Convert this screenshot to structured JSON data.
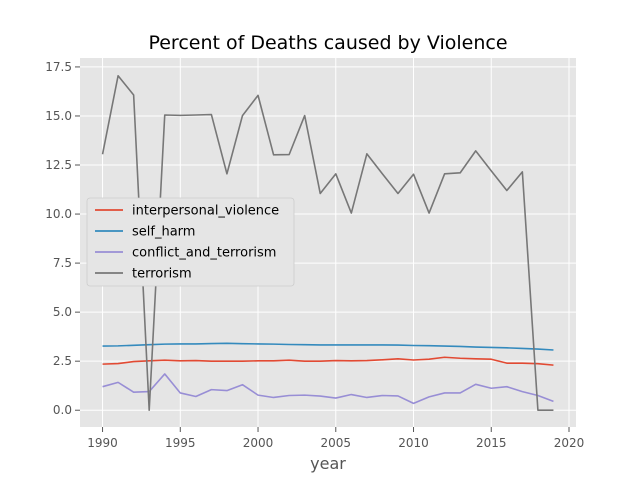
{
  "chart_data": {
    "type": "line",
    "title": "Percent of Deaths caused by Violence",
    "xlabel": "year",
    "ylabel": "",
    "xlim": [
      1988.55,
      2020.45
    ],
    "ylim": [
      -0.855,
      17.955
    ],
    "x_ticks": [
      1990,
      1995,
      2000,
      2005,
      2010,
      2015,
      2020
    ],
    "y_ticks": [
      0.0,
      2.5,
      5.0,
      7.5,
      10.0,
      12.5,
      15.0,
      17.5
    ],
    "x_tick_labels": [
      "1990",
      "1995",
      "2000",
      "2005",
      "2010",
      "2015",
      "2020"
    ],
    "y_tick_labels": [
      "0.0",
      "2.5",
      "5.0",
      "7.5",
      "10.0",
      "12.5",
      "15.0",
      "17.5"
    ],
    "grid": true,
    "legend_position": "center-left",
    "x": [
      1990,
      1991,
      1992,
      1993,
      1994,
      1995,
      1996,
      1997,
      1998,
      1999,
      2000,
      2001,
      2002,
      2003,
      2004,
      2005,
      2006,
      2007,
      2008,
      2009,
      2010,
      2011,
      2012,
      2013,
      2014,
      2015,
      2016,
      2017,
      2018,
      2019
    ],
    "series": [
      {
        "name": "interpersonal_violence",
        "color": "#e24a33",
        "values": [
          2.35,
          2.38,
          2.48,
          2.52,
          2.55,
          2.52,
          2.53,
          2.5,
          2.5,
          2.5,
          2.52,
          2.52,
          2.55,
          2.5,
          2.5,
          2.53,
          2.52,
          2.53,
          2.57,
          2.62,
          2.56,
          2.6,
          2.7,
          2.65,
          2.62,
          2.6,
          2.4,
          2.4,
          2.37,
          2.3
        ]
      },
      {
        "name": "self_harm",
        "color": "#348abd",
        "values": [
          3.27,
          3.28,
          3.31,
          3.34,
          3.37,
          3.38,
          3.38,
          3.4,
          3.41,
          3.39,
          3.38,
          3.37,
          3.35,
          3.34,
          3.33,
          3.33,
          3.33,
          3.33,
          3.33,
          3.32,
          3.3,
          3.29,
          3.27,
          3.25,
          3.22,
          3.2,
          3.18,
          3.15,
          3.12,
          3.07
        ]
      },
      {
        "name": "conflict_and_terrorism",
        "color": "#988ed5",
        "values": [
          1.2,
          1.42,
          0.92,
          0.95,
          1.85,
          0.88,
          0.7,
          1.05,
          1.0,
          1.3,
          0.77,
          0.65,
          0.75,
          0.77,
          0.72,
          0.62,
          0.8,
          0.65,
          0.75,
          0.73,
          0.35,
          0.68,
          0.88,
          0.88,
          1.32,
          1.12,
          1.2,
          0.95,
          0.75,
          0.45
        ]
      },
      {
        "name": "terrorism",
        "color": "#777777",
        "values": [
          13.05,
          17.05,
          16.07,
          0.0,
          15.05,
          15.03,
          15.05,
          15.07,
          12.05,
          15.02,
          16.05,
          13.02,
          13.03,
          15.02,
          11.05,
          12.05,
          10.05,
          13.07,
          12.05,
          11.05,
          12.03,
          10.05,
          12.05,
          12.1,
          13.22,
          12.2,
          11.2,
          12.15,
          0.0,
          0.0
        ]
      }
    ]
  }
}
